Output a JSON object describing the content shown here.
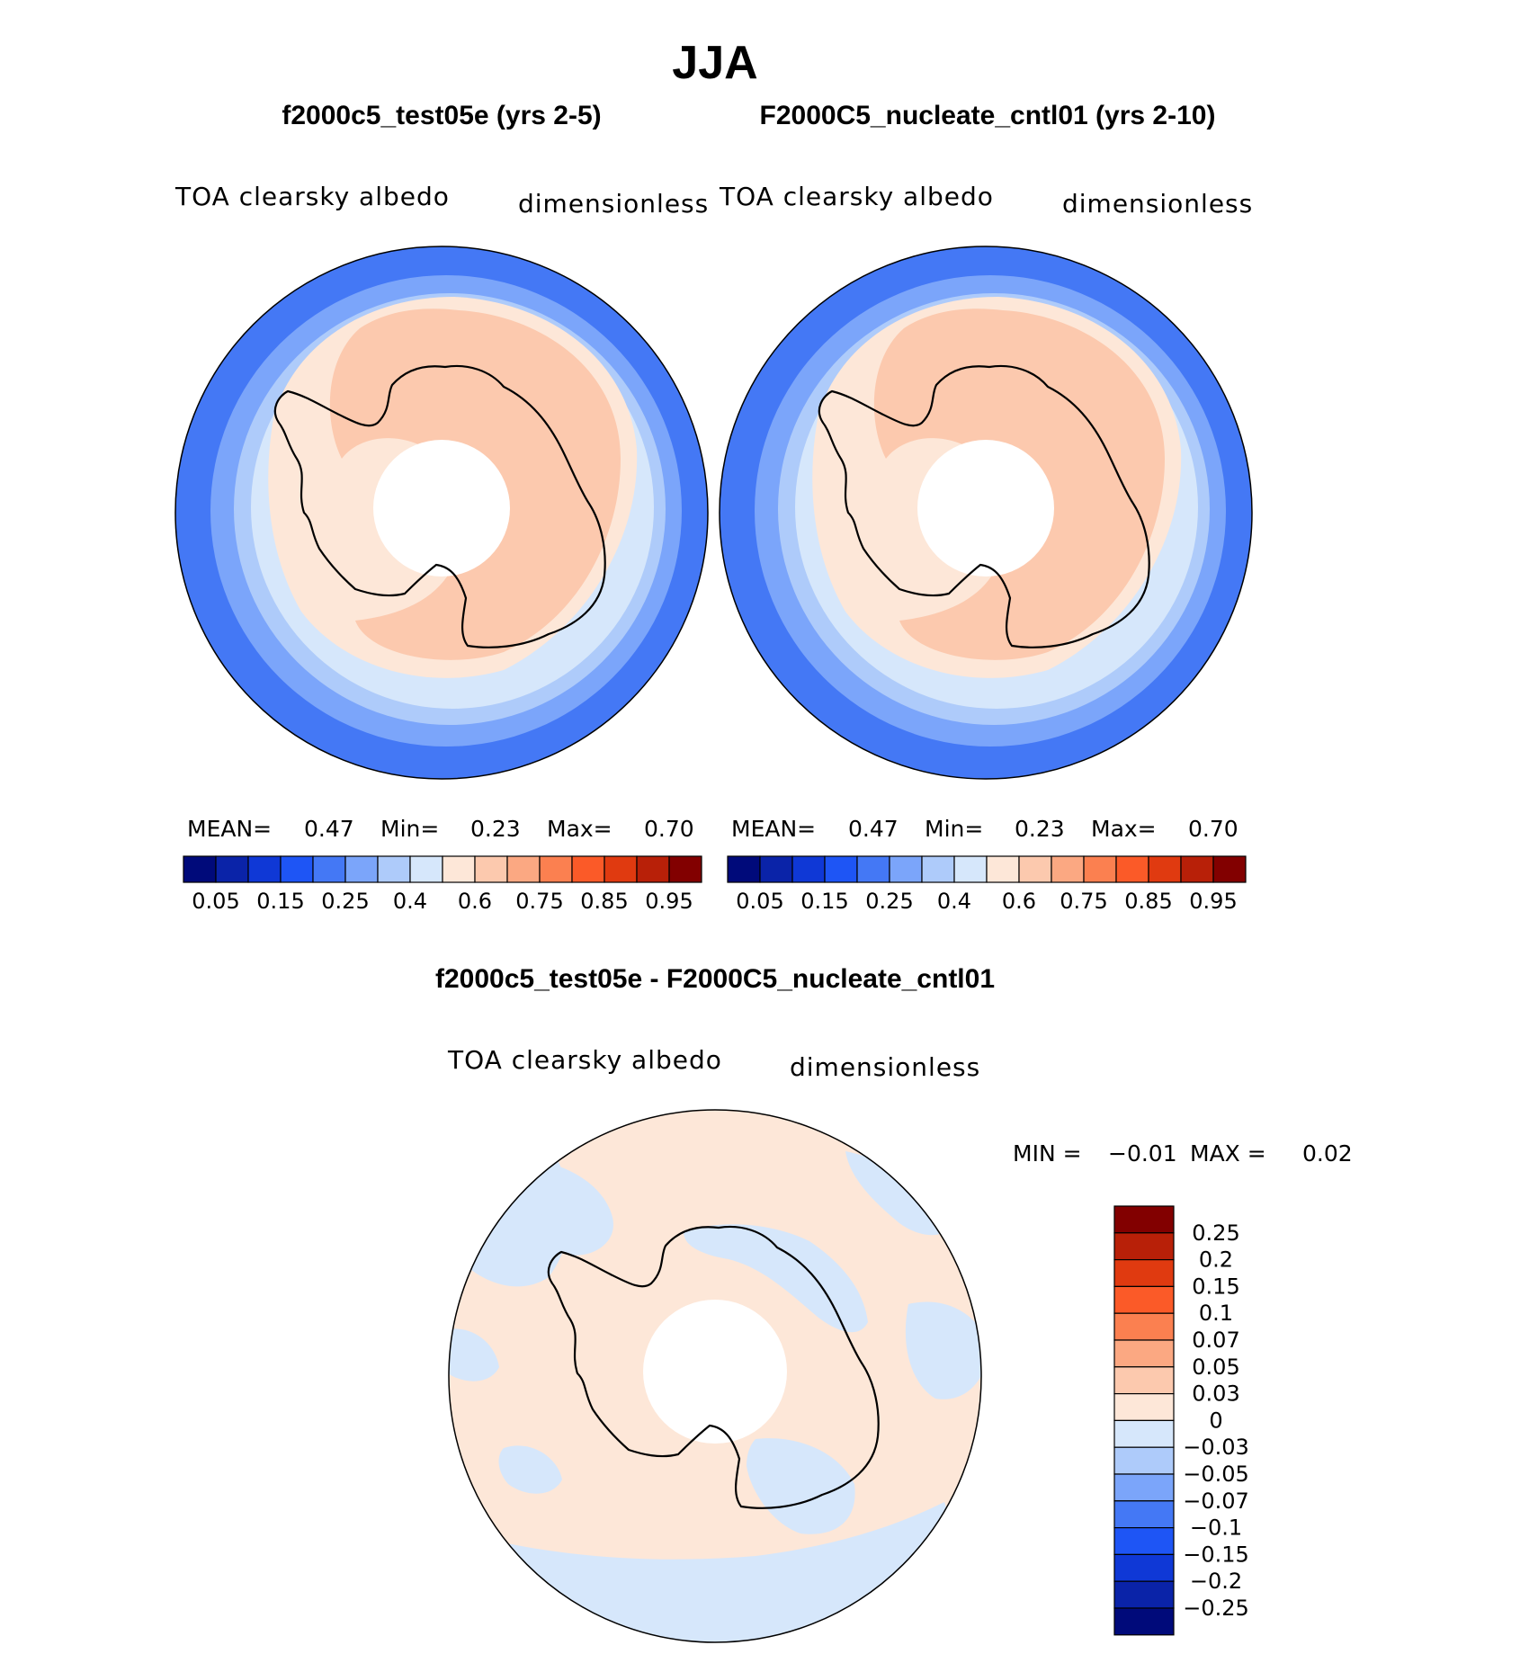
{
  "main_title": "JJA",
  "panels": [
    {
      "id": "left",
      "case_title": "f2000c5_test05e (yrs 2-5)",
      "variable": "TOA clearsky albedo",
      "units": "dimensionless",
      "stats": {
        "mean_label": "MEAN=",
        "mean": "0.47",
        "min_label": "Min=",
        "min": "0.23",
        "max_label": "Max=",
        "max": "0.70"
      }
    },
    {
      "id": "right",
      "case_title": "F2000C5_nucleate_cntl01 (yrs 2-10)",
      "variable": "TOA clearsky albedo",
      "units": "dimensionless",
      "stats": {
        "mean_label": "MEAN=",
        "mean": "0.47",
        "min_label": "Min=",
        "min": "0.23",
        "max_label": "Max=",
        "max": "0.70"
      }
    }
  ],
  "colorbar_horizontal": {
    "colors": [
      "#000a7a",
      "#0a23a8",
      "#0f38d6",
      "#1e55f5",
      "#4478f5",
      "#7ba5fa",
      "#aecbfa",
      "#d6e7fb",
      "#fde7d8",
      "#fcc9ae",
      "#fba882",
      "#fb8050",
      "#fb5a28",
      "#e03a10",
      "#b82008",
      "#820000"
    ],
    "labels": [
      "0.05",
      "0.15",
      "0.25",
      "0.4",
      "0.6",
      "0.75",
      "0.85",
      "0.95"
    ]
  },
  "difference": {
    "title": "f2000c5_test05e - F2000C5_nucleate_cntl01",
    "variable": "TOA clearsky albedo",
    "units": "dimensionless",
    "min_label": "MIN =",
    "min": "−0.01",
    "max_label": "MAX =",
    "max": "0.02",
    "colorbar": {
      "colors_top_to_bottom": [
        "#820000",
        "#b82008",
        "#e03a10",
        "#fb5a28",
        "#fb8050",
        "#fba882",
        "#fcc9ae",
        "#fde7d8",
        "#d6e7fb",
        "#aecbfa",
        "#7ba5fa",
        "#4478f5",
        "#1e55f5",
        "#0f38d6",
        "#0a23a8",
        "#000a7a"
      ],
      "labels_top_to_bottom": [
        "0.25",
        "0.2",
        "0.15",
        "0.1",
        "0.07",
        "0.05",
        "0.03",
        "0",
        "−0.03",
        "−0.05",
        "−0.07",
        "−0.1",
        "−0.15",
        "−0.2",
        "−0.25"
      ]
    }
  }
}
